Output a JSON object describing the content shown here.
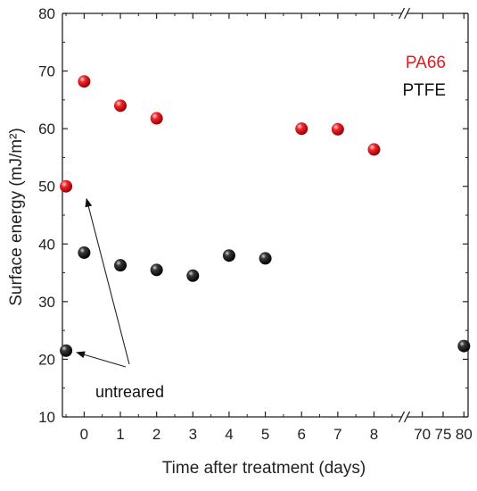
{
  "chart_data": {
    "type": "scatter",
    "xlabel": "Time after treatment (days)",
    "ylabel": "Surface energy (mJ/m²)",
    "ylim": [
      10,
      80
    ],
    "yticks": [
      10,
      20,
      30,
      40,
      50,
      60,
      70,
      80
    ],
    "x_axis_broken": true,
    "x_segments": [
      {
        "range": [
          -0.6,
          8.8
        ],
        "ticks": [
          0,
          1,
          2,
          3,
          4,
          5,
          6,
          7,
          8
        ]
      },
      {
        "range": [
          66,
          81
        ],
        "ticks": [
          70,
          75,
          80
        ]
      }
    ],
    "grid": false,
    "legend_position": "top-right",
    "series": [
      {
        "name": "PA66",
        "color": "#e8141b",
        "points": [
          {
            "x": -0.5,
            "y": 50.0
          },
          {
            "x": 0,
            "y": 68.2
          },
          {
            "x": 1,
            "y": 64.0
          },
          {
            "x": 2,
            "y": 61.8
          },
          {
            "x": 6,
            "y": 60.0
          },
          {
            "x": 7,
            "y": 59.9
          },
          {
            "x": 8,
            "y": 56.4
          }
        ]
      },
      {
        "name": "PTFE",
        "color": "#111111",
        "points": [
          {
            "x": -0.5,
            "y": 21.5
          },
          {
            "x": 0,
            "y": 38.5
          },
          {
            "x": 1,
            "y": 36.3
          },
          {
            "x": 2,
            "y": 35.5
          },
          {
            "x": 3,
            "y": 34.5
          },
          {
            "x": 4,
            "y": 38.0
          },
          {
            "x": 5,
            "y": 37.5
          },
          {
            "x": 80,
            "y": 22.3
          }
        ]
      }
    ],
    "annotations": [
      {
        "text": "untreared",
        "arrows_to": [
          {
            "x": -0.5,
            "y": 50.0
          },
          {
            "x": -0.5,
            "y": 21.5
          }
        ]
      }
    ]
  }
}
